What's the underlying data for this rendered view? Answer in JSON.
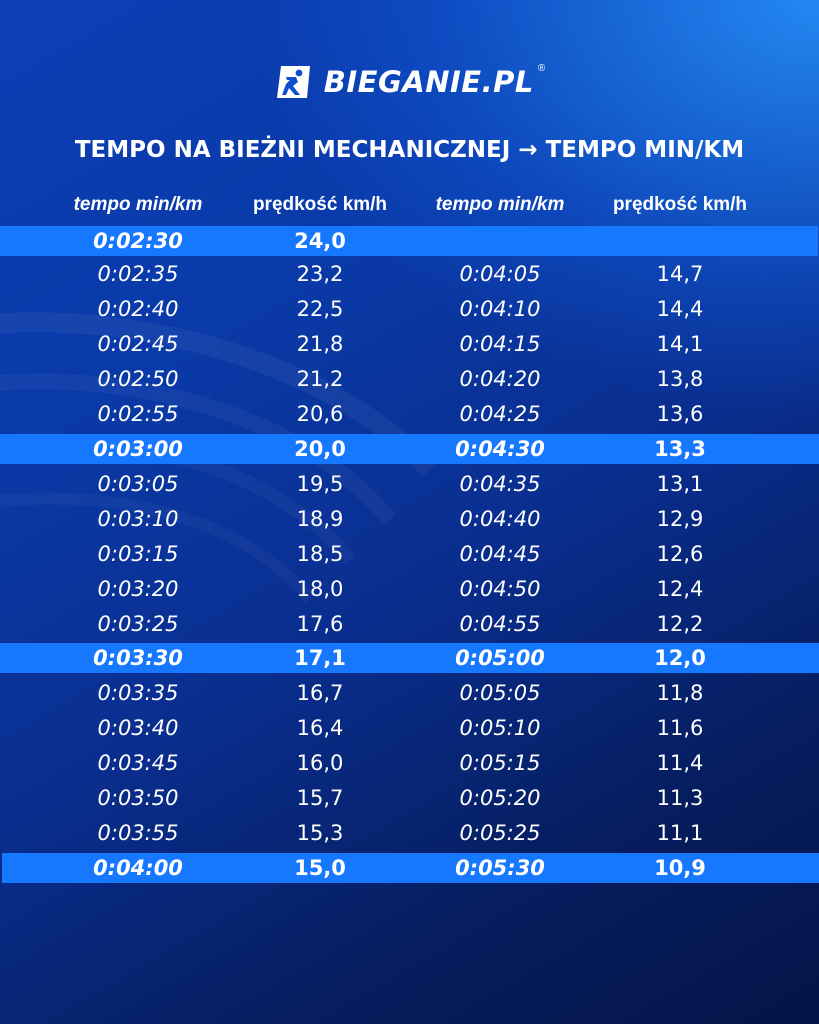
{
  "brand": {
    "name": "BIEGANIE.PL",
    "registered": "®"
  },
  "title": "TEMPO NA BIEŻNI MECHANICZNEJ  → TEMPO MIN/KM",
  "headers": {
    "tempo_left": "tempo min/km",
    "speed_left": "prędkość km/h",
    "tempo_right": "tempo min/km",
    "speed_right": "prędkość km/h"
  },
  "colors": {
    "background_top": "#1690ff",
    "background_bottom": "#041447",
    "highlight_row": "#1677ff",
    "text": "#ffffff"
  },
  "rows": [
    {
      "t1": "0:02:30",
      "s1": "24,0",
      "t2": "",
      "s2": "",
      "highlight": true
    },
    {
      "t1": "0:02:35",
      "s1": "23,2",
      "t2": "0:04:05",
      "s2": "14,7",
      "highlight": false
    },
    {
      "t1": "0:02:40",
      "s1": "22,5",
      "t2": "0:04:10",
      "s2": "14,4",
      "highlight": false
    },
    {
      "t1": "0:02:45",
      "s1": "21,8",
      "t2": "0:04:15",
      "s2": "14,1",
      "highlight": false
    },
    {
      "t1": "0:02:50",
      "s1": "21,2",
      "t2": "0:04:20",
      "s2": "13,8",
      "highlight": false
    },
    {
      "t1": "0:02:55",
      "s1": "20,6",
      "t2": "0:04:25",
      "s2": "13,6",
      "highlight": false
    },
    {
      "t1": "0:03:00",
      "s1": "20,0",
      "t2": "0:04:30",
      "s2": "13,3",
      "highlight": true
    },
    {
      "t1": "0:03:05",
      "s1": "19,5",
      "t2": "0:04:35",
      "s2": "13,1",
      "highlight": false
    },
    {
      "t1": "0:03:10",
      "s1": "18,9",
      "t2": "0:04:40",
      "s2": "12,9",
      "highlight": false
    },
    {
      "t1": "0:03:15",
      "s1": "18,5",
      "t2": "0:04:45",
      "s2": "12,6",
      "highlight": false
    },
    {
      "t1": "0:03:20",
      "s1": "18,0",
      "t2": "0:04:50",
      "s2": "12,4",
      "highlight": false
    },
    {
      "t1": "0:03:25",
      "s1": "17,6",
      "t2": "0:04:55",
      "s2": "12,2",
      "highlight": false
    },
    {
      "t1": "0:03:30",
      "s1": "17,1",
      "t2": "0:05:00",
      "s2": "12,0",
      "highlight": true
    },
    {
      "t1": "0:03:35",
      "s1": "16,7",
      "t2": "0:05:05",
      "s2": "11,8",
      "highlight": false
    },
    {
      "t1": "0:03:40",
      "s1": "16,4",
      "t2": "0:05:10",
      "s2": "11,6",
      "highlight": false
    },
    {
      "t1": "0:03:45",
      "s1": "16,0",
      "t2": "0:05:15",
      "s2": "11,4",
      "highlight": false
    },
    {
      "t1": "0:03:50",
      "s1": "15,7",
      "t2": "0:05:20",
      "s2": "11,3",
      "highlight": false
    },
    {
      "t1": "0:03:55",
      "s1": "15,3",
      "t2": "0:05:25",
      "s2": "11,1",
      "highlight": false
    },
    {
      "t1": "0:04:00",
      "s1": "15,0",
      "t2": "0:05:30",
      "s2": "10,9",
      "highlight": true
    }
  ]
}
